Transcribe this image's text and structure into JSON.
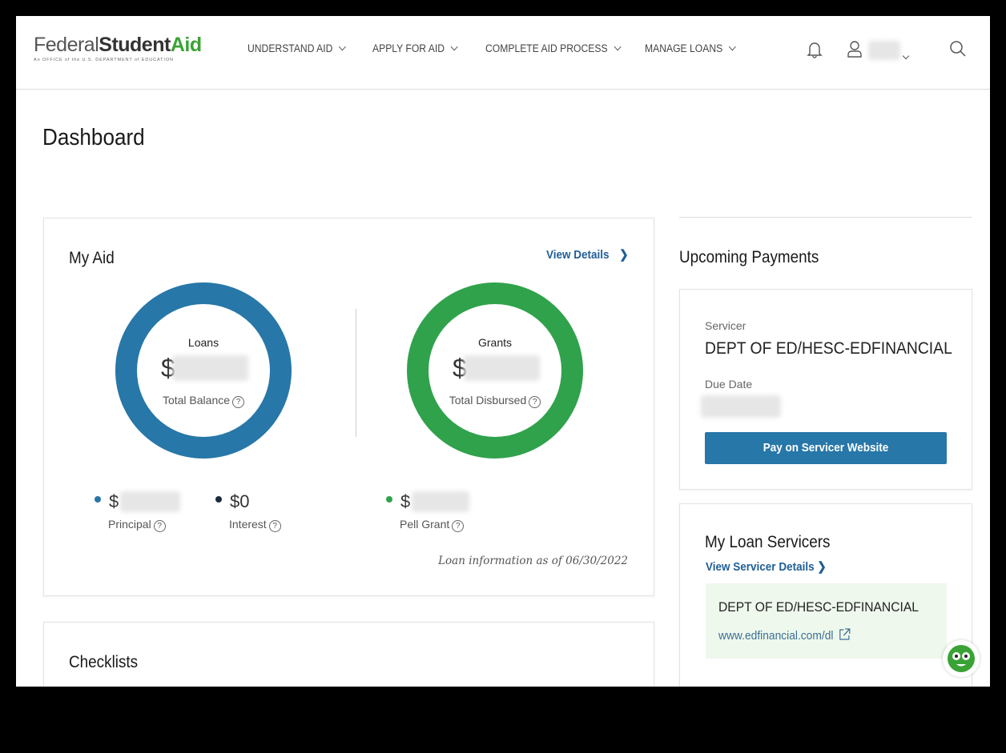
{
  "header": {
    "logo": {
      "part1": "Federal",
      "part2": "Student",
      "part3": "Aid",
      "tagline": "An OFFICE of the U.S. DEPARTMENT of EDUCATION"
    },
    "nav": [
      {
        "label": "UNDERSTAND AID"
      },
      {
        "label": "APPLY FOR AID"
      },
      {
        "label": "COMPLETE AID PROCESS"
      },
      {
        "label": "MANAGE LOANS"
      }
    ],
    "icons": [
      "bell-icon",
      "user-icon",
      "search-icon"
    ]
  },
  "page_title": "Dashboard",
  "my_aid": {
    "title": "My Aid",
    "view_details": "View Details",
    "loans": {
      "title": "Loans",
      "currency": "$",
      "label": "Total Balance",
      "color": "#2777a8"
    },
    "grants": {
      "title": "Grants",
      "currency": "$",
      "label": "Total Disbursed",
      "color": "#30a24c"
    },
    "principal": {
      "currency": "$",
      "label": "Principal"
    },
    "interest": {
      "value": "$0",
      "label": "Interest"
    },
    "pell": {
      "currency": "$",
      "label": "Pell Grant"
    },
    "note": "Loan information as of 06/30/2022"
  },
  "checklists": {
    "title": "Checklists"
  },
  "upcoming": {
    "title": "Upcoming Payments",
    "servicer_label": "Servicer",
    "servicer": "DEPT OF ED/HESC-EDFINANCIAL",
    "due_label": "Due Date",
    "pay_button": "Pay on Servicer Website"
  },
  "servicers": {
    "title": "My Loan Servicers",
    "view_link": "View Servicer Details",
    "name": "DEPT OF ED/HESC-EDFINANCIAL",
    "url": "www.edfinancial.com/dl"
  }
}
